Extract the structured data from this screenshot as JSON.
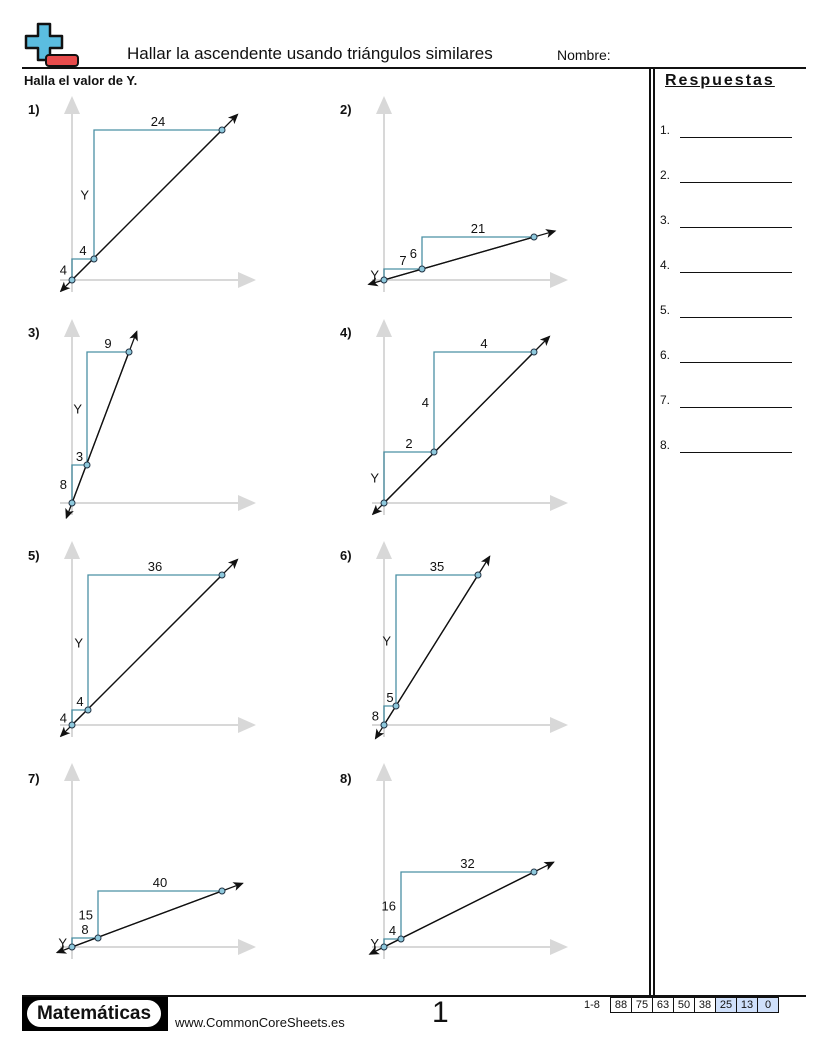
{
  "header": {
    "title": "Hallar la ascendente usando triángulos similares",
    "name_label": "Nombre:",
    "instructions": "Halla el valor de Y."
  },
  "answers": {
    "title": "Respuestas",
    "items": [
      "1.",
      "2.",
      "3.",
      "4.",
      "5.",
      "6.",
      "7.",
      "8."
    ]
  },
  "colors": {
    "triangle": "#4a90a4",
    "point_fill": "#8ec9dd",
    "axis": "#d8d8d8",
    "logo_blue": "#5bbde0",
    "logo_red": "#e84c4c",
    "score_highlight": "#cfe0fb"
  },
  "problems": [
    {
      "number": "1)",
      "small_rise": "4",
      "small_run": "4",
      "big_rise": "Y",
      "big_run": "24"
    },
    {
      "number": "2)",
      "small_rise": "Y",
      "small_run": "7",
      "big_rise": "6",
      "big_run": "21"
    },
    {
      "number": "3)",
      "small_rise": "8",
      "small_run": "3",
      "big_rise": "Y",
      "big_run": "9"
    },
    {
      "number": "4)",
      "small_rise": "Y",
      "small_run": "2",
      "big_rise": "4",
      "big_run": "4"
    },
    {
      "number": "5)",
      "small_rise": "4",
      "small_run": "4",
      "big_rise": "Y",
      "big_run": "36"
    },
    {
      "number": "6)",
      "small_rise": "8",
      "small_run": "5",
      "big_rise": "Y",
      "big_run": "35"
    },
    {
      "number": "7)",
      "small_rise": "Y",
      "small_run": "8",
      "big_rise": "15",
      "big_run": "40"
    },
    {
      "number": "8)",
      "small_rise": "Y",
      "small_run": "4",
      "big_rise": "16",
      "big_run": "32"
    }
  ],
  "footer": {
    "brand": "Matemáticas",
    "url": "www.CommonCoreSheets.es",
    "page": "1",
    "range": "1-8",
    "scores": [
      "88",
      "75",
      "63",
      "50",
      "38",
      "25",
      "13",
      "0"
    ]
  }
}
